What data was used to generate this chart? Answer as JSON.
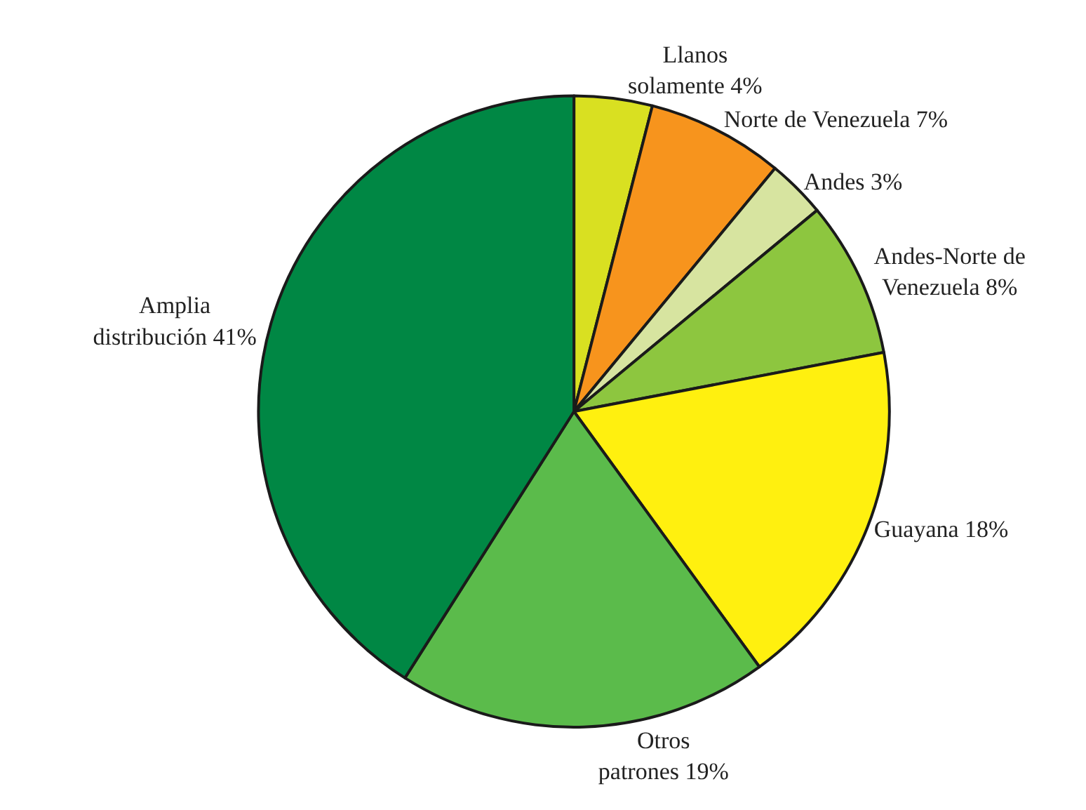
{
  "chart_data": {
    "type": "pie",
    "categories": [
      "Llanos\nsolamente 4%",
      "Norte de Venezuela 7%",
      "Andes 3%",
      "Andes-Norte de\nVenezuela 8%",
      "Guayana 18%",
      "Otros\npatrones 19%",
      "Amplia\ndistribución 41%"
    ],
    "values": [
      4,
      7,
      3,
      8,
      18,
      19,
      41
    ],
    "colors": [
      "#d9e021",
      "#f7941d",
      "#d7e4a0",
      "#8dc63f",
      "#fff00f",
      "#5bbb4b",
      "#008744"
    ],
    "legend": false
  }
}
